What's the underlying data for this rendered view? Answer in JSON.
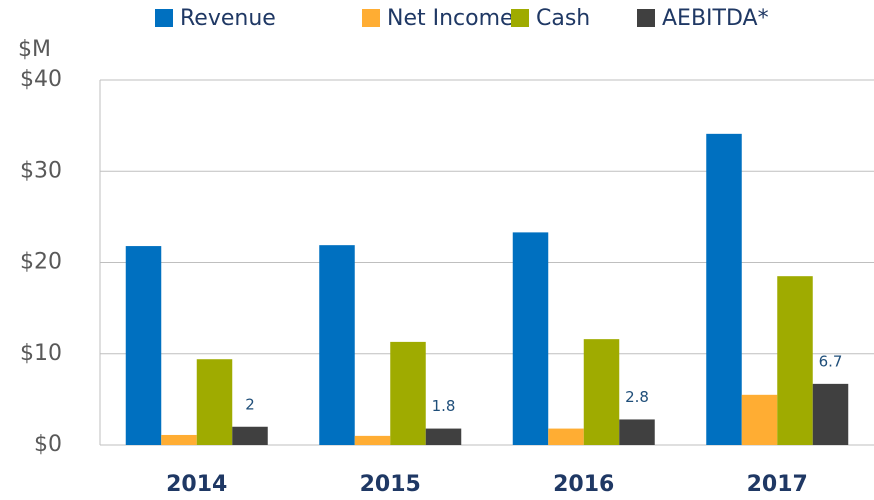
{
  "chart_data": {
    "type": "bar",
    "unit_label": "$M",
    "categories": [
      "2014",
      "2015",
      "2016",
      "2017"
    ],
    "series": [
      {
        "name": "Revenue",
        "color": "#0070c0",
        "values": [
          21.8,
          21.9,
          23.3,
          34.1
        ]
      },
      {
        "name": "Net Income",
        "color": "#ffad33",
        "values": [
          1.1,
          1.0,
          1.8,
          5.5
        ]
      },
      {
        "name": "Cash",
        "color": "#9fab00",
        "values": [
          9.4,
          11.3,
          11.6,
          18.5
        ]
      },
      {
        "name": "AEBITDA*",
        "color": "#404040",
        "values": [
          2,
          1.8,
          2.8,
          6.7
        ],
        "show_labels": true
      }
    ],
    "ylim": [
      0,
      40
    ],
    "yticks": [
      {
        "value": 0,
        "label": "$0"
      },
      {
        "value": 10,
        "label": "$10"
      },
      {
        "value": 20,
        "label": "$20"
      },
      {
        "value": 30,
        "label": "$30"
      },
      {
        "value": 40,
        "label": "$40"
      }
    ],
    "grid": true,
    "legend": "top"
  }
}
